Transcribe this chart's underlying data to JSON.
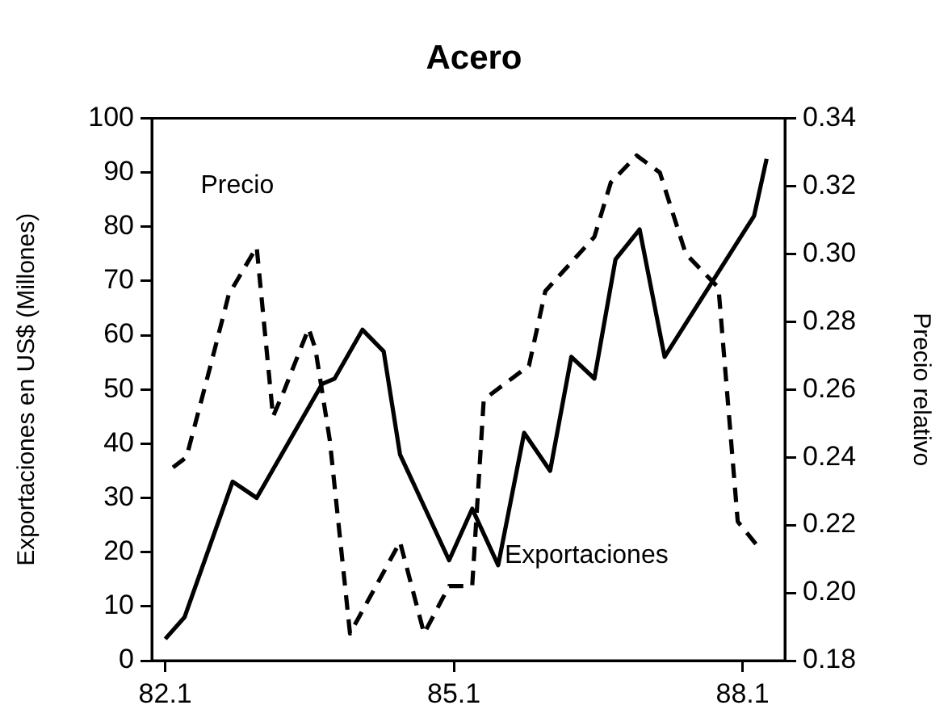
{
  "chart_data": {
    "type": "line",
    "title": "Acero",
    "ylabel": "Exportaciones en US$ (Millones)",
    "y2label": "Precio relativo",
    "xlim": [
      81.96,
      88.54
    ],
    "xticks": [
      82.1,
      85.1,
      88.1
    ],
    "ylim": [
      0,
      100
    ],
    "yticks": [
      0,
      10,
      20,
      30,
      40,
      50,
      60,
      70,
      80,
      90,
      100
    ],
    "y2lim": [
      0.18,
      0.34
    ],
    "y2ticks": [
      {
        "value": 0.18,
        "label": "0.18"
      },
      {
        "value": 0.2,
        "label": "0.20"
      },
      {
        "value": 0.22,
        "label": "0.22"
      },
      {
        "value": 0.24,
        "label": "0.24"
      },
      {
        "value": 0.26,
        "label": "0.26"
      },
      {
        "value": 0.28,
        "label": "0.28"
      },
      {
        "value": 0.3,
        "label": "0.30"
      },
      {
        "value": 0.32,
        "label": "0.32"
      },
      {
        "value": 0.34,
        "label": "0.34"
      }
    ],
    "grid": false,
    "legend": false,
    "marker": "none",
    "series": [
      {
        "name": "Exportaciones",
        "color": "#000000",
        "line_style": "solid",
        "x": [
          82.1,
          82.3,
          82.8,
          83.05,
          83.73,
          83.86,
          84.15,
          84.37,
          84.54,
          85.05,
          85.29,
          85.56,
          85.83,
          86.1,
          86.32,
          86.56,
          86.78,
          87.03,
          87.29,
          88.13,
          88.22,
          88.35
        ],
        "values": [
          4,
          8,
          33,
          30,
          51,
          52,
          61,
          57,
          38,
          18.5,
          28,
          17.6,
          42,
          35,
          56,
          52,
          74,
          79.5,
          56,
          79.5,
          82,
          92.5
        ]
      },
      {
        "name": "Precio",
        "color": "#000000",
        "line_style": "dashed",
        "axis": "y2",
        "x": [
          82.18,
          82.32,
          82.57,
          82.76,
          83.05,
          83.22,
          83.34,
          83.59,
          83.66,
          83.81,
          84.02,
          84.29,
          84.54,
          84.79,
          85.05,
          85.29,
          85.41,
          85.88,
          86.05,
          86.56,
          86.73,
          87.0,
          87.24,
          87.51,
          87.85,
          88.05,
          88.25
        ],
        "values": [
          0.237,
          0.24,
          0.267,
          0.288,
          0.302,
          0.252,
          0.26,
          0.278,
          0.272,
          0.245,
          0.188,
          0.202,
          0.215,
          0.188,
          0.202,
          0.202,
          0.257,
          0.267,
          0.289,
          0.305,
          0.321,
          0.329,
          0.324,
          0.3,
          0.29,
          0.221,
          0.214
        ]
      }
    ]
  }
}
